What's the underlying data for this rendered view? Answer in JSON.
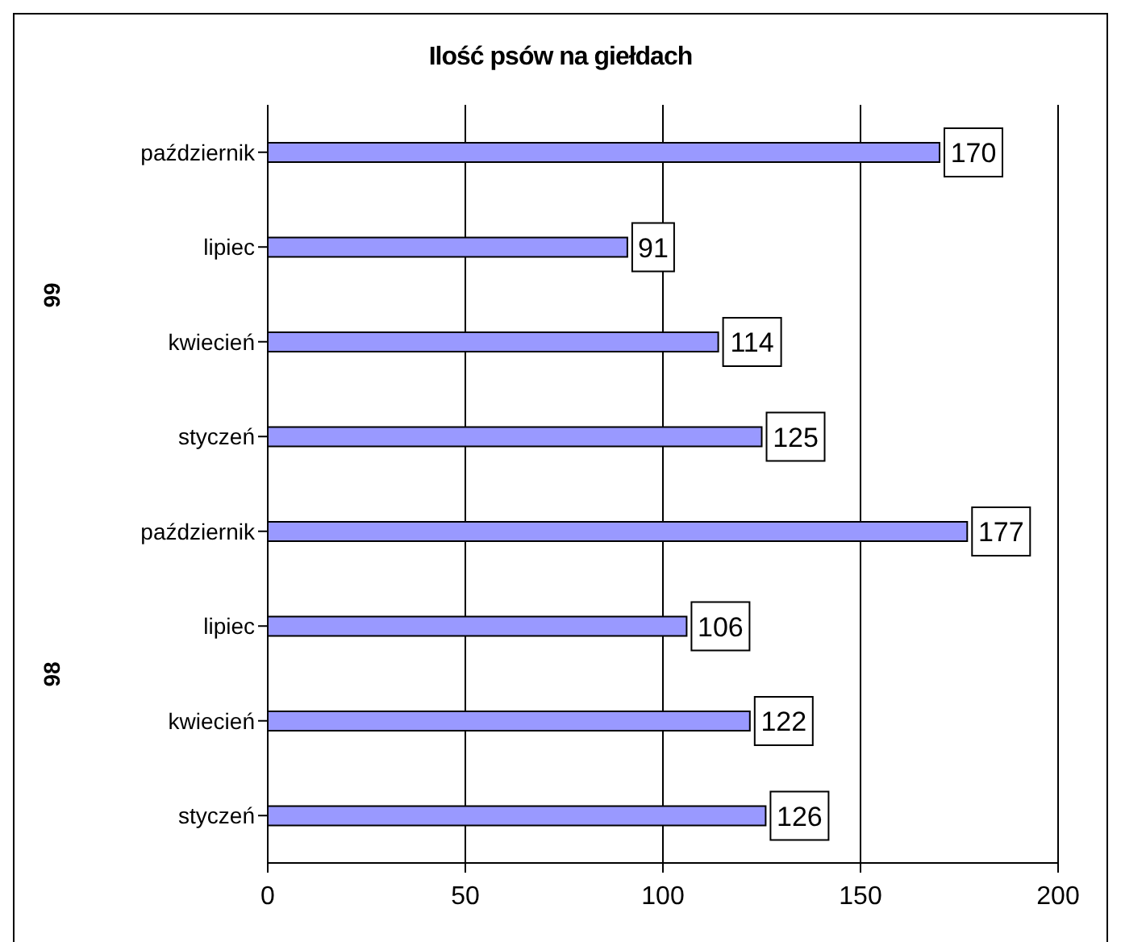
{
  "chart_data": {
    "type": "bar",
    "orientation": "horizontal",
    "title": "Ilość psów na giełdach",
    "categories": [
      "październik",
      "lipiec",
      "kwiecień",
      "styczeń",
      "październik",
      "lipiec",
      "kwiecień",
      "styczeń"
    ],
    "values": [
      170,
      91,
      114,
      125,
      177,
      106,
      122,
      126
    ],
    "color": "#9999ff",
    "xlim": [
      0,
      200
    ],
    "xticks": [
      0,
      50,
      100,
      150,
      200
    ],
    "grid": "x",
    "data_labels": true,
    "annotations": [
      "99",
      "98"
    ]
  }
}
